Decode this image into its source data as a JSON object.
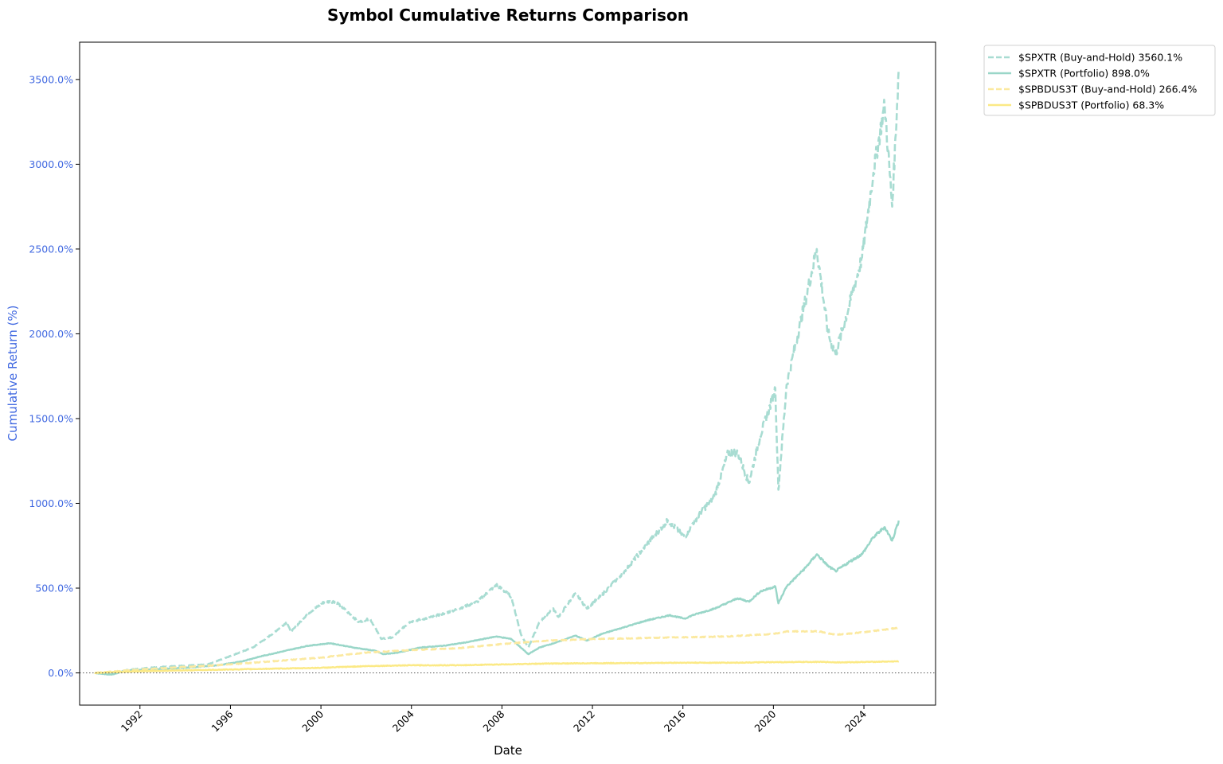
{
  "chart_data": {
    "type": "line",
    "title": "Symbol Cumulative Returns Comparison",
    "xlabel": "Date",
    "ylabel": "Cumulative Return (%)",
    "x_axis_type": "date",
    "xlim": [
      "1989-05-01",
      "2027-03-01"
    ],
    "ylim": [
      -190,
      3720
    ],
    "y_ticks": [
      0,
      500,
      1000,
      1500,
      2000,
      2500,
      3000,
      3500
    ],
    "y_tick_labels": [
      "0.0%",
      "500.0%",
      "1000.0%",
      "1500.0%",
      "2000.0%",
      "2500.0%",
      "3000.0%",
      "3500.0%"
    ],
    "x_ticks": [
      "1992",
      "1996",
      "2000",
      "2004",
      "2008",
      "2012",
      "2016",
      "2020",
      "2024"
    ],
    "grid": false,
    "zero_reference_line": true,
    "legend_position": "outside upper right",
    "ylabel_color": "#4169e1",
    "series": [
      {
        "name": "$SPXTR (Buy-and-Hold) 3560.1%",
        "style": "dashed",
        "color": "#a8dcd2",
        "points": [
          [
            "1990-01-01",
            0
          ],
          [
            "1990-10-01",
            -10
          ],
          [
            "1991-06-01",
            18
          ],
          [
            "1992-06-01",
            30
          ],
          [
            "1993-06-01",
            40
          ],
          [
            "1994-06-01",
            45
          ],
          [
            "1995-01-01",
            50
          ],
          [
            "1996-01-01",
            100
          ],
          [
            "1997-01-01",
            150
          ],
          [
            "1997-10-01",
            220
          ],
          [
            "1998-07-01",
            300
          ],
          [
            "1998-09-01",
            240
          ],
          [
            "1999-06-01",
            350
          ],
          [
            "2000-03-01",
            420
          ],
          [
            "2000-09-01",
            420
          ],
          [
            "2001-03-01",
            360
          ],
          [
            "2001-09-01",
            300
          ],
          [
            "2002-03-01",
            320
          ],
          [
            "2002-09-01",
            200
          ],
          [
            "2003-03-01",
            210
          ],
          [
            "2003-12-01",
            300
          ],
          [
            "2004-12-01",
            330
          ],
          [
            "2005-12-01",
            370
          ],
          [
            "2006-12-01",
            420
          ],
          [
            "2007-10-01",
            520
          ],
          [
            "2008-06-01",
            450
          ],
          [
            "2008-11-01",
            230
          ],
          [
            "2009-03-01",
            150
          ],
          [
            "2009-09-01",
            300
          ],
          [
            "2010-04-01",
            380
          ],
          [
            "2010-07-01",
            330
          ],
          [
            "2011-04-01",
            470
          ],
          [
            "2011-10-01",
            380
          ],
          [
            "2012-06-01",
            460
          ],
          [
            "2013-06-01",
            600
          ],
          [
            "2014-06-01",
            760
          ],
          [
            "2015-05-01",
            900
          ],
          [
            "2016-02-01",
            800
          ],
          [
            "2016-06-01",
            880
          ],
          [
            "2017-06-01",
            1050
          ],
          [
            "2018-01-01",
            1300
          ],
          [
            "2018-06-01",
            1300
          ],
          [
            "2018-12-01",
            1120
          ],
          [
            "2019-06-01",
            1400
          ],
          [
            "2019-12-01",
            1600
          ],
          [
            "2020-02-01",
            1680
          ],
          [
            "2020-03-20",
            1080
          ],
          [
            "2020-08-01",
            1700
          ],
          [
            "2021-06-01",
            2200
          ],
          [
            "2021-12-01",
            2500
          ],
          [
            "2022-06-01",
            2000
          ],
          [
            "2022-10-01",
            1880
          ],
          [
            "2023-06-01",
            2200
          ],
          [
            "2023-12-01",
            2450
          ],
          [
            "2024-06-01",
            2950
          ],
          [
            "2024-12-01",
            3350
          ],
          [
            "2025-04-01",
            2750
          ],
          [
            "2025-07-15",
            3560
          ]
        ]
      },
      {
        "name": "$SPXTR (Portfolio) 898.0%",
        "style": "solid",
        "color": "#99d6c8",
        "points": [
          [
            "1990-01-01",
            0
          ],
          [
            "1990-10-01",
            -10
          ],
          [
            "1991-06-01",
            15
          ],
          [
            "1992-06-01",
            20
          ],
          [
            "1994-01-01",
            30
          ],
          [
            "1995-06-01",
            45
          ],
          [
            "1996-06-01",
            65
          ],
          [
            "1997-06-01",
            100
          ],
          [
            "1998-06-01",
            130
          ],
          [
            "1999-06-01",
            160
          ],
          [
            "2000-06-01",
            175
          ],
          [
            "2001-06-01",
            150
          ],
          [
            "2002-06-01",
            130
          ],
          [
            "2002-10-01",
            110
          ],
          [
            "2003-06-01",
            120
          ],
          [
            "2004-06-01",
            150
          ],
          [
            "2005-06-01",
            160
          ],
          [
            "2006-06-01",
            180
          ],
          [
            "2007-10-01",
            215
          ],
          [
            "2008-06-01",
            200
          ],
          [
            "2008-11-01",
            150
          ],
          [
            "2009-03-01",
            110
          ],
          [
            "2009-09-01",
            150
          ],
          [
            "2010-06-01",
            180
          ],
          [
            "2011-04-01",
            220
          ],
          [
            "2011-10-01",
            190
          ],
          [
            "2012-06-01",
            230
          ],
          [
            "2013-06-01",
            270
          ],
          [
            "2014-06-01",
            310
          ],
          [
            "2015-06-01",
            340
          ],
          [
            "2016-02-01",
            320
          ],
          [
            "2016-06-01",
            340
          ],
          [
            "2017-06-01",
            380
          ],
          [
            "2018-06-01",
            440
          ],
          [
            "2018-12-01",
            420
          ],
          [
            "2019-06-01",
            480
          ],
          [
            "2020-02-01",
            510
          ],
          [
            "2020-03-20",
            410
          ],
          [
            "2020-08-01",
            510
          ],
          [
            "2021-06-01",
            620
          ],
          [
            "2021-12-01",
            700
          ],
          [
            "2022-06-01",
            630
          ],
          [
            "2022-10-01",
            600
          ],
          [
            "2023-06-01",
            660
          ],
          [
            "2023-12-01",
            700
          ],
          [
            "2024-06-01",
            800
          ],
          [
            "2024-12-01",
            860
          ],
          [
            "2025-04-01",
            780
          ],
          [
            "2025-07-15",
            898
          ]
        ]
      },
      {
        "name": "$SPBDUS3T (Buy-and-Hold) 266.4%",
        "style": "dashed",
        "color": "#fbe9a0",
        "points": [
          [
            "1990-01-01",
            0
          ],
          [
            "1992-01-01",
            20
          ],
          [
            "1994-01-01",
            35
          ],
          [
            "1996-01-01",
            50
          ],
          [
            "1998-01-01",
            70
          ],
          [
            "2000-01-01",
            90
          ],
          [
            "2002-01-01",
            120
          ],
          [
            "2004-01-01",
            135
          ],
          [
            "2006-01-01",
            145
          ],
          [
            "2008-01-01",
            170
          ],
          [
            "2010-01-01",
            190
          ],
          [
            "2012-01-01",
            200
          ],
          [
            "2014-01-01",
            205
          ],
          [
            "2016-01-01",
            210
          ],
          [
            "2018-01-01",
            215
          ],
          [
            "2020-01-01",
            230
          ],
          [
            "2020-08-01",
            245
          ],
          [
            "2022-01-01",
            245
          ],
          [
            "2022-10-01",
            225
          ],
          [
            "2024-01-01",
            240
          ],
          [
            "2025-07-15",
            266
          ]
        ]
      },
      {
        "name": "$SPBDUS3T (Portfolio) 68.3%",
        "style": "solid",
        "color": "#fbe985",
        "points": [
          [
            "1990-01-01",
            0
          ],
          [
            "1992-01-01",
            10
          ],
          [
            "1994-01-01",
            15
          ],
          [
            "1996-01-01",
            20
          ],
          [
            "1998-01-01",
            25
          ],
          [
            "2000-01-01",
            30
          ],
          [
            "2002-01-01",
            40
          ],
          [
            "2004-01-01",
            45
          ],
          [
            "2006-01-01",
            45
          ],
          [
            "2008-01-01",
            50
          ],
          [
            "2010-01-01",
            55
          ],
          [
            "2012-01-01",
            57
          ],
          [
            "2014-01-01",
            58
          ],
          [
            "2016-01-01",
            60
          ],
          [
            "2018-01-01",
            60
          ],
          [
            "2020-01-01",
            63
          ],
          [
            "2022-01-01",
            65
          ],
          [
            "2023-01-01",
            62
          ],
          [
            "2025-07-15",
            68
          ]
        ]
      }
    ]
  }
}
